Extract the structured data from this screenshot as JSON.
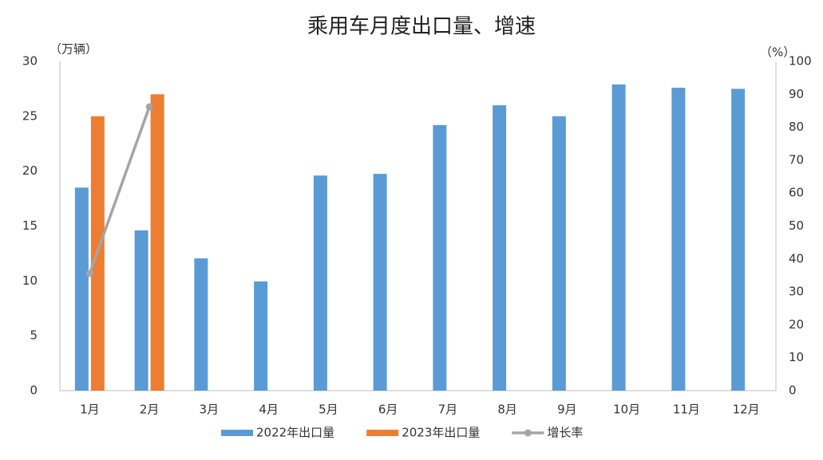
{
  "chart_data": {
    "type": "bar",
    "title": "乘用车月度出口量、增速",
    "y_label": "（万辆）",
    "y2_label": "（%）",
    "categories": [
      "1月",
      "2月",
      "3月",
      "4月",
      "5月",
      "6月",
      "7月",
      "8月",
      "9月",
      "10月",
      "11月",
      "12月"
    ],
    "series": [
      {
        "name": "2022年出口量",
        "color": "#5b9bd5",
        "type": "bar",
        "values": [
          18.5,
          14.6,
          12.05,
          9.95,
          19.6,
          19.75,
          24.2,
          26.0,
          25.0,
          27.9,
          27.6,
          27.5
        ]
      },
      {
        "name": "2023年出口量",
        "color": "#ed7d31",
        "type": "bar",
        "values": [
          25.0,
          27.0,
          null,
          null,
          null,
          null,
          null,
          null,
          null,
          null,
          null,
          null
        ]
      },
      {
        "name": "增长率",
        "color": "#a5a5a5",
        "type": "line",
        "axis": "y2",
        "values": [
          35.6,
          86.2,
          null,
          null,
          null,
          null,
          null,
          null,
          null,
          null,
          null,
          null
        ]
      }
    ],
    "ylim": [
      0,
      30
    ],
    "yticks": [
      0,
      5,
      10,
      15,
      20,
      25,
      30
    ],
    "y2lim": [
      0,
      100
    ],
    "y2ticks": [
      0,
      10,
      20,
      30,
      40,
      50,
      60,
      70,
      80,
      90,
      100
    ],
    "grid": false,
    "legend": "bottom"
  }
}
